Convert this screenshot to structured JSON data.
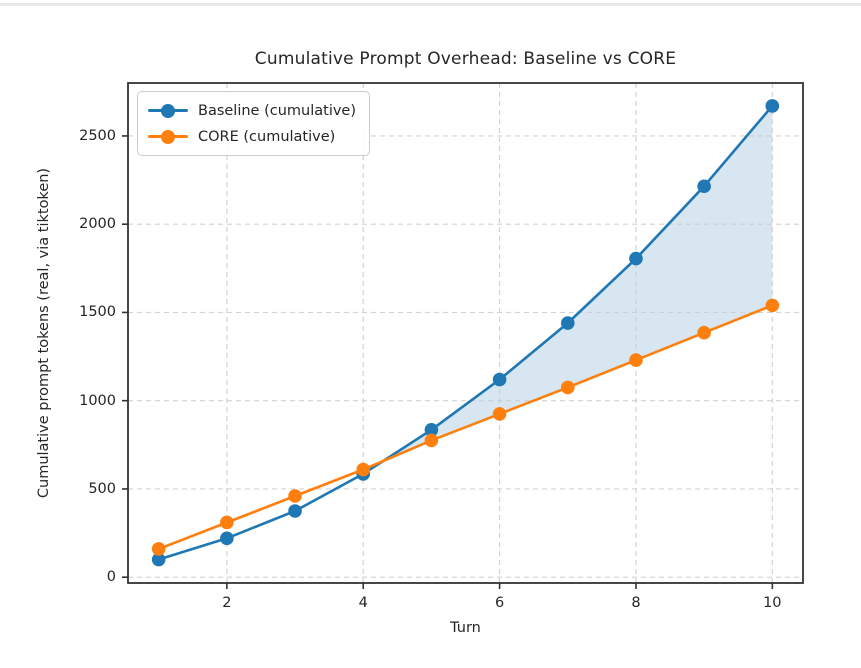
{
  "page": {
    "background": "#ffffff",
    "top_divider_color": "#e9e9e9"
  },
  "chart_data": {
    "type": "line",
    "title": "Cumulative Prompt Overhead: Baseline vs CORE",
    "xlabel": "Turn",
    "ylabel": "Cumulative prompt tokens (real, via tiktoken)",
    "x": [
      1,
      2,
      3,
      4,
      5,
      6,
      7,
      8,
      9,
      10
    ],
    "series": [
      {
        "name": "Baseline (cumulative)",
        "color": "#1f77b4",
        "marker": "circle",
        "values": [
          100,
          220,
          375,
          585,
          835,
          1120,
          1440,
          1805,
          2215,
          2670
        ]
      },
      {
        "name": "CORE (cumulative)",
        "color": "#ff7f0e",
        "marker": "circle",
        "values": [
          160,
          310,
          460,
          610,
          775,
          925,
          1075,
          1230,
          1385,
          1540
        ]
      }
    ],
    "fill_between": {
      "upper": "Baseline (cumulative)",
      "lower": "CORE (cumulative)",
      "where": "upper >= lower",
      "color": "rgba(31,119,180,0.18)"
    },
    "xticks": [
      "2",
      "4",
      "6",
      "8",
      "10"
    ],
    "xtick_values": [
      2,
      4,
      6,
      8,
      10
    ],
    "yticks": [
      "0",
      "500",
      "1000",
      "1500",
      "2000",
      "2500"
    ],
    "ytick_values": [
      0,
      500,
      1000,
      1500,
      2000,
      2500
    ],
    "xlim": [
      0.55,
      10.45
    ],
    "ylim": [
      -33,
      2800
    ],
    "grid": true,
    "grid_style": "dashed",
    "grid_color": "#cccccc",
    "spine_color": "#333333",
    "legend_position": "upper-left"
  }
}
